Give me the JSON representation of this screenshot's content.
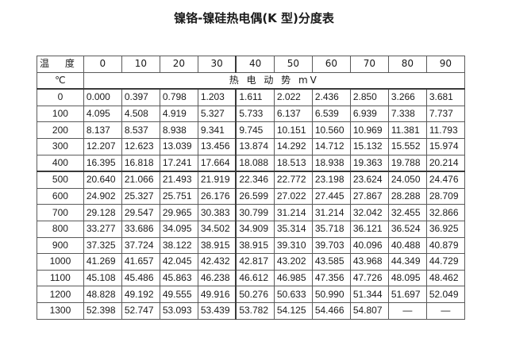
{
  "title": "镍铬-镍硅热电偶(K 型)分度表",
  "header": {
    "temp_label": "温 度",
    "unit_symbol": "℃",
    "columns": [
      "0",
      "10",
      "20",
      "30",
      "40",
      "50",
      "60",
      "70",
      "80",
      "90"
    ],
    "emf_label": "热 电 动 势 mV"
  },
  "rows": [
    {
      "t": "0",
      "v": [
        "0.000",
        "0.397",
        "0.798",
        "1.203",
        "1.611",
        "2.022",
        "2.436",
        "2.850",
        "3.266",
        "3.681"
      ]
    },
    {
      "t": "100",
      "v": [
        "4.095",
        "4.508",
        "4.919",
        "5.327",
        "5.733",
        "6.137",
        "6.539",
        "6.939",
        "7.338",
        "7.737"
      ]
    },
    {
      "t": "200",
      "v": [
        "8.137",
        "8.537",
        "8.938",
        "9.341",
        "9.745",
        "10.151",
        "10.560",
        "10.969",
        "11.381",
        "11.793"
      ]
    },
    {
      "t": "300",
      "v": [
        "12.207",
        "12.623",
        "13.039",
        "13.456",
        "13.874",
        "14.292",
        "14.712",
        "15.132",
        "15.552",
        "15.974"
      ]
    },
    {
      "t": "400",
      "v": [
        "16.395",
        "16.818",
        "17.241",
        "17.664",
        "18.088",
        "18.513",
        "18.938",
        "19.363",
        "19.788",
        "20.214"
      ]
    },
    {
      "t": "500",
      "v": [
        "20.640",
        "21.066",
        "21.493",
        "21.919",
        "22.346",
        "22.772",
        "23.198",
        "23.624",
        "24.050",
        "24.476"
      ]
    },
    {
      "t": "600",
      "v": [
        "24.902",
        "25.327",
        "25.751",
        "26.176",
        "26.599",
        "27.022",
        "27.445",
        "27.867",
        "28.288",
        "28.709"
      ]
    },
    {
      "t": "700",
      "v": [
        "29.128",
        "29.547",
        "29.965",
        "30.383",
        "30.799",
        "31.214",
        "31.214",
        "32.042",
        "32.455",
        "32.866"
      ]
    },
    {
      "t": "800",
      "v": [
        "33.277",
        "33.686",
        "34.095",
        "34.502",
        "34.909",
        "35.314",
        "35.718",
        "36.121",
        "36.524",
        "36.925"
      ]
    },
    {
      "t": "900",
      "v": [
        "37.325",
        "37.724",
        "38.122",
        "38.915",
        "38.915",
        "39.310",
        "39.703",
        "40.096",
        "40.488",
        "40.879"
      ]
    },
    {
      "t": "1000",
      "v": [
        "41.269",
        "41.657",
        "42.045",
        "42.432",
        "42.817",
        "43.202",
        "43.585",
        "43.968",
        "44.349",
        "44.729"
      ]
    },
    {
      "t": "1100",
      "v": [
        "45.108",
        "45.486",
        "45.863",
        "46.238",
        "46.612",
        "46.985",
        "47.356",
        "47.726",
        "48.095",
        "48.462"
      ]
    },
    {
      "t": "1200",
      "v": [
        "48.828",
        "49.192",
        "49.555",
        "49.916",
        "50.276",
        "50.633",
        "50.990",
        "51.344",
        "51.697",
        "52.049"
      ]
    },
    {
      "t": "1300",
      "v": [
        "52.398",
        "52.747",
        "53.093",
        "53.439",
        "53.782",
        "54.125",
        "54.466",
        "54.807",
        "—",
        "—"
      ]
    }
  ]
}
